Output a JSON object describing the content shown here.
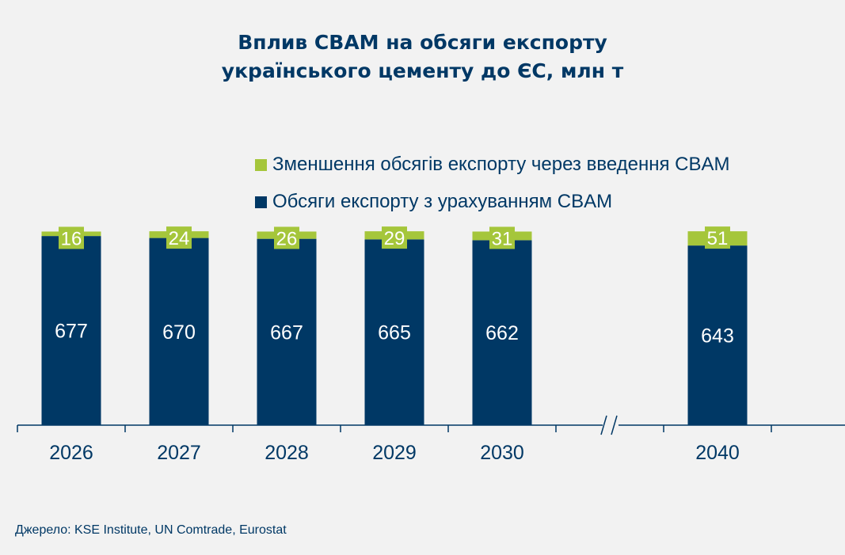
{
  "title_lines": [
    "Вплив CBAM на обсяги експорту",
    "українського цементу до ЄС, млн т"
  ],
  "source": "Джерело:  KSE Institute,  UN Comtrade,  Eurostat",
  "chart_data": {
    "type": "bar",
    "stacked": true,
    "title": "Вплив CBAM на обсяги експорту українського цементу до ЄС, млн т",
    "categories": [
      "2026",
      "2027",
      "2028",
      "2029",
      "2030",
      "2040"
    ],
    "axis_break_between": [
      "2030",
      "2040"
    ],
    "series": [
      {
        "name": "Обсяги експорту з урахуванням CBAM",
        "color": "#003865",
        "values": [
          677,
          670,
          667,
          665,
          662,
          643
        ]
      },
      {
        "name": "Зменшення обсягів експорту через введення CBAM",
        "color": "#a5c63b",
        "values": [
          16,
          24,
          26,
          29,
          31,
          51
        ]
      }
    ],
    "ylim": [
      0,
      700
    ],
    "grid": false,
    "y_axis_visible": false,
    "legend_placement": "top-right"
  }
}
